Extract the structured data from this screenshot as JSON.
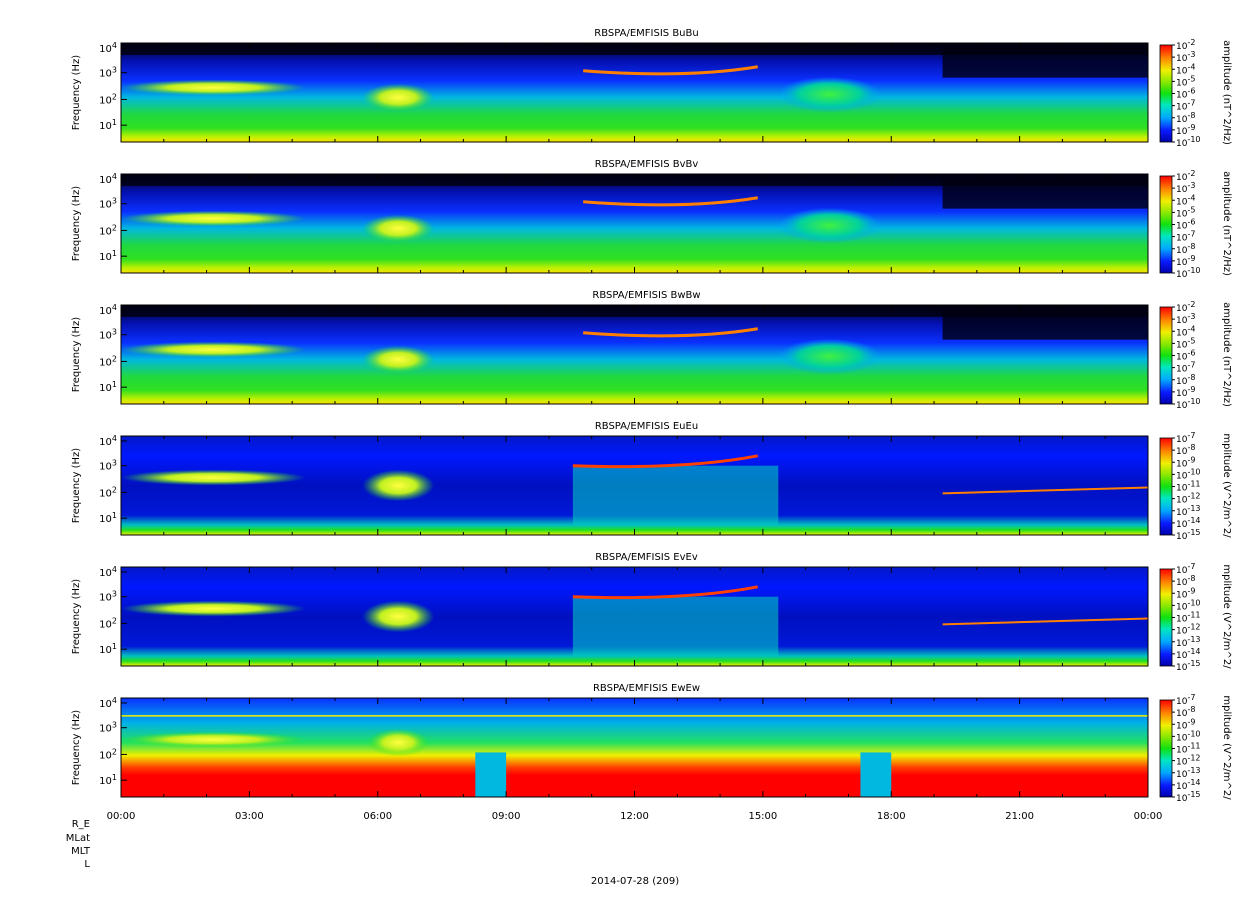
{
  "chart_data": [
    {
      "type": "heatmap",
      "title": "RBSPA/EMFISIS  BuBu",
      "ylabel": "Frequency (Hz)",
      "yscale": "log",
      "y_ticks": [
        "10^1",
        "10^2",
        "10^3",
        "10^4"
      ],
      "colorbar": {
        "label": "amplitude (nT^2/Hz)",
        "scale": "log",
        "ticks": [
          "10^-2",
          "10^-3",
          "10^-4",
          "10^-5",
          "10^-6",
          "10^-7",
          "10^-8",
          "10^-9",
          "10^-10"
        ]
      }
    },
    {
      "type": "heatmap",
      "title": "RBSPA/EMFISIS  BvBv",
      "ylabel": "Frequency (Hz)",
      "yscale": "log",
      "y_ticks": [
        "10^1",
        "10^2",
        "10^3",
        "10^4"
      ],
      "colorbar": {
        "label": "amplitude (nT^2/Hz)",
        "scale": "log",
        "ticks": [
          "10^-2",
          "10^-3",
          "10^-4",
          "10^-5",
          "10^-6",
          "10^-7",
          "10^-8",
          "10^-9",
          "10^-10"
        ]
      }
    },
    {
      "type": "heatmap",
      "title": "RBSPA/EMFISIS  BwBw",
      "ylabel": "Frequency (Hz)",
      "yscale": "log",
      "y_ticks": [
        "10^1",
        "10^2",
        "10^3",
        "10^4"
      ],
      "colorbar": {
        "label": "amplitude (nT^2/Hz)",
        "scale": "log",
        "ticks": [
          "10^-2",
          "10^-3",
          "10^-4",
          "10^-5",
          "10^-6",
          "10^-7",
          "10^-8",
          "10^-9",
          "10^-10"
        ]
      }
    },
    {
      "type": "heatmap",
      "title": "RBSPA/EMFISIS  EuEu",
      "ylabel": "Frequency (Hz)",
      "yscale": "log",
      "y_ticks": [
        "10^1",
        "10^2",
        "10^3",
        "10^4"
      ],
      "colorbar": {
        "label": "mplitude (V^2/m^2/",
        "scale": "log",
        "ticks": [
          "10^-7",
          "10^-8",
          "10^-9",
          "10^-10",
          "10^-11",
          "10^-12",
          "10^-13",
          "10^-14",
          "10^-15"
        ]
      }
    },
    {
      "type": "heatmap",
      "title": "RBSPA/EMFISIS  EvEv",
      "ylabel": "Frequency (Hz)",
      "yscale": "log",
      "y_ticks": [
        "10^1",
        "10^2",
        "10^3",
        "10^4"
      ],
      "colorbar": {
        "label": "mplitude (V^2/m^2/",
        "scale": "log",
        "ticks": [
          "10^-7",
          "10^-8",
          "10^-9",
          "10^-10",
          "10^-11",
          "10^-12",
          "10^-13",
          "10^-14",
          "10^-15"
        ]
      }
    },
    {
      "type": "heatmap",
      "title": "RBSPA/EMFISIS  EwEw",
      "ylabel": "Frequency (Hz)",
      "yscale": "log",
      "y_ticks": [
        "10^1",
        "10^2",
        "10^3",
        "10^4"
      ],
      "x_ticks": [
        "00:00",
        "03:00",
        "06:00",
        "09:00",
        "12:00",
        "15:00",
        "18:00",
        "21:00",
        "00:00"
      ],
      "colorbar": {
        "label": "mplitude (V^2/m^2/",
        "scale": "log",
        "ticks": [
          "10^-7",
          "10^-8",
          "10^-9",
          "10^-10",
          "10^-11",
          "10^-12",
          "10^-13",
          "10^-14",
          "10^-15"
        ]
      }
    }
  ],
  "ephemeris_labels": [
    "R_E",
    "MLat",
    "MLT",
    "L"
  ],
  "date_label": "2014-07-28 (209)",
  "colors": {
    "background": "#000000",
    "low": "#0a1acc",
    "mid": "#18d818",
    "high": "#f0f000",
    "max": "#ee1010"
  }
}
